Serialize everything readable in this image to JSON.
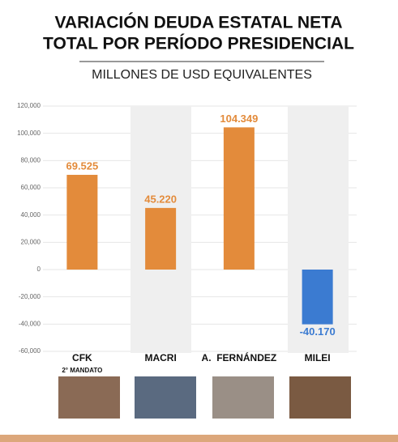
{
  "chart_data": {
    "type": "bar",
    "title": [
      "VARIACIÓN DEUDA ESTATAL NETA",
      "TOTAL POR PERÍODO PRESIDENCIAL"
    ],
    "subtitle": "MILLONES DE USD EQUIVALENTES",
    "categories": [
      "CFK",
      "MACRI",
      "A.  FERNÁNDEZ",
      "MILEI"
    ],
    "annotation": "2° MANDATO",
    "values": [
      69525,
      45220,
      104349,
      -40170
    ],
    "value_labels": [
      "69.525",
      "45.220",
      "104.349",
      "-40.170"
    ],
    "colors": [
      "#e38b3b",
      "#e38b3b",
      "#e38b3b",
      "#3b7bd1"
    ],
    "ylim": [
      -60000,
      120000
    ],
    "yticks": [
      {
        "value": 120000,
        "label": "120,000"
      },
      {
        "value": 100000,
        "label": "100,000"
      },
      {
        "value": 80000,
        "label": "80,000"
      },
      {
        "value": 60000,
        "label": "60,000"
      },
      {
        "value": 40000,
        "label": "40,000"
      },
      {
        "value": 20000,
        "label": "20,000"
      },
      0,
      {
        "value": -20000,
        "label": "-20,000"
      },
      {
        "value": -40000,
        "label": "-40,000"
      },
      {
        "value": -60000,
        "label": "-60,000"
      }
    ],
    "grid": true
  }
}
